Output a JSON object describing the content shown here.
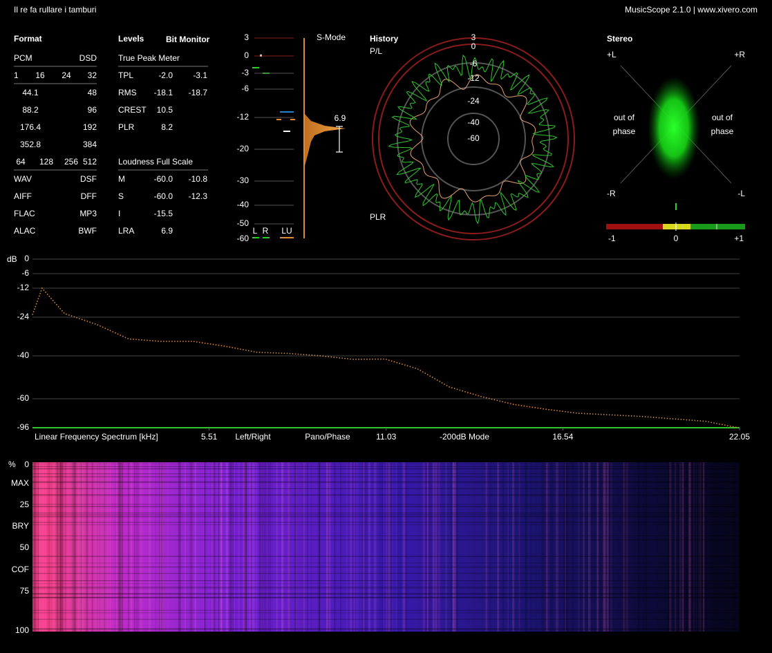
{
  "header": {
    "title": "Il re fa rullare i tamburi",
    "app": "MusicScope 2.1.0 | www.xivero.com"
  },
  "format": {
    "title": "Format",
    "rows": [
      [
        "PCM",
        "DSD"
      ],
      [
        "1",
        "16",
        "24",
        "32"
      ],
      [
        "44.1",
        "48"
      ],
      [
        "88.2",
        "96"
      ],
      [
        "176.4",
        "192"
      ],
      [
        "352.8",
        "384"
      ],
      [
        "64",
        "128",
        "256",
        "512"
      ],
      [
        "WAV",
        "DSF"
      ],
      [
        "AIFF",
        "DFF"
      ],
      [
        "FLAC",
        "MP3"
      ],
      [
        "ALAC",
        "BWF"
      ]
    ]
  },
  "levels": {
    "title": "Levels",
    "bit_monitor": "Bit Monitor",
    "true_peak_title": "True Peak Meter",
    "true_peak": [
      {
        "label": "TPL",
        "values": [
          "-2.0",
          "-3.1"
        ]
      },
      {
        "label": "RMS",
        "values": [
          "-18.1",
          "-18.7"
        ]
      },
      {
        "label": "CREST",
        "values": [
          "10.5"
        ]
      },
      {
        "label": "PLR",
        "values": [
          "8.2"
        ]
      }
    ],
    "loudness_title": "Loudness Full Scale",
    "loudness": [
      {
        "label": "M",
        "values": [
          "-60.0",
          "-10.8"
        ]
      },
      {
        "label": "S",
        "values": [
          "-60.0",
          "-12.3"
        ]
      },
      {
        "label": "I",
        "values": [
          "-15.5"
        ]
      },
      {
        "label": "LRA",
        "values": [
          "6.9"
        ]
      }
    ]
  },
  "meter": {
    "ticks": [
      "3",
      "0",
      "-3",
      "-6",
      "-12",
      "-20",
      "-30",
      "-40",
      "-50",
      "-60"
    ],
    "mode": "S-Mode",
    "value": "6.9",
    "channels": [
      "L",
      "R",
      "LU"
    ]
  },
  "history": {
    "title": "History",
    "top_label": "P/L",
    "bottom_label": "PLR",
    "rings": [
      "3",
      "0",
      "-6",
      "-12",
      "-24",
      "-40",
      "-60"
    ]
  },
  "stereo": {
    "title": "Stereo",
    "corners": [
      "+L",
      "+R",
      "-R",
      "-L"
    ],
    "out_of_phase": [
      "out of",
      "phase"
    ],
    "scale": [
      "-1",
      "0",
      "+1"
    ]
  },
  "chart_data": {
    "type": "line",
    "y_unit": "dB",
    "x_label": "Linear Frequency Spectrum [kHz]",
    "modes": [
      "Left/Right",
      "Pano/Phase",
      "-200dB Mode"
    ],
    "ylim": [
      -96,
      0
    ],
    "yticks": [
      0,
      -6,
      -12,
      -24,
      -40,
      -60,
      -96
    ],
    "xlim": [
      0,
      22.05
    ],
    "xticks": [
      5.51,
      11.03,
      16.54,
      22.05
    ],
    "series": [
      {
        "color": "#e08a3a",
        "x": [
          0,
          0.3,
          1,
          2,
          3,
          4,
          5,
          6,
          7,
          8,
          9,
          10,
          11,
          12,
          13,
          14,
          15,
          16,
          17,
          18,
          19,
          20,
          21,
          22
        ],
        "values": [
          -23,
          -12,
          -22.5,
          -27,
          -33,
          -34,
          -34,
          -36,
          -38.5,
          -39,
          -40,
          -41.6,
          -41.5,
          -46,
          -54.5,
          -59,
          -67,
          -73,
          -78,
          -80,
          -82,
          -85,
          -88,
          -96
        ]
      }
    ]
  },
  "spectrogram": {
    "unit": "%",
    "ticks": [
      "0",
      "MAX",
      "25",
      "BRY",
      "50",
      "COF",
      "75",
      "100"
    ]
  }
}
